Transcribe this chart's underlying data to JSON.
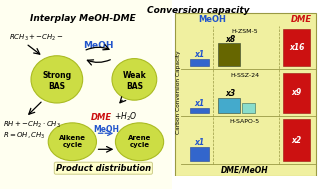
{
  "title": "Conversion capacity",
  "meoh_label": "MeOH",
  "dme_label": "DME",
  "zeolites": [
    "H-ZSM-5",
    "H-SSZ-24",
    "H-SAPO-5"
  ],
  "x1_labels": [
    "x1",
    "x1",
    "x1"
  ],
  "mid_labels": [
    "x8",
    "x3",
    ""
  ],
  "dme_labels": [
    "x16",
    "x9",
    "x2"
  ],
  "bar_blue": "#3366cc",
  "bar_olive": "#666600",
  "bar_cyan": "#44bbcc",
  "bar_red": "#cc1111",
  "chart_bg": "#f0f0a0",
  "ellipse_fill": "#ccdd44",
  "ellipse_edge": "#aabb22",
  "ylabel": "Carbon Conversion Capacity",
  "xlabel": "DME/MeOH",
  "interplay_title": "Interplay MeOH-DME",
  "product_dist_title": "Product distribution",
  "meoh_color": "#2255cc",
  "dme_color": "#cc1111",
  "left_bg": "#fffff0",
  "top_text1": "RCH_3 + -CH_2-",
  "bot_text1": "RH + -CH_2-CH_3",
  "bot_text2": "R = OH, CH_3",
  "dme_h2o": "DME",
  "plus_h2o": "+ H_2O"
}
